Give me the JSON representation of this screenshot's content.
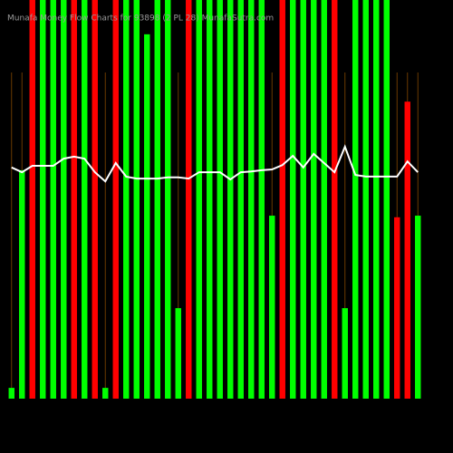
{
  "chart_data": {
    "type": "bar",
    "title": "Munafa Money Flow Charts for 93898 (2 PL 28) MunafaSutra.com",
    "ylim": [
      0,
      100
    ],
    "bar_values": [
      2.7,
      57.3,
      100,
      100,
      100,
      100,
      100,
      100,
      100,
      2.7,
      100,
      100,
      100,
      91.4,
      100,
      100,
      22.7,
      100,
      100,
      100,
      100,
      100,
      100,
      100,
      100,
      45.9,
      100,
      100,
      100,
      100,
      100,
      100,
      22.7,
      100,
      100,
      100,
      100,
      45.5,
      74.5,
      45.9
    ],
    "bar_colors": [
      "#00ff00",
      "#00ff00",
      "#ff0000",
      "#00ff00",
      "#00ff00",
      "#00ff00",
      "#ff0000",
      "#00ff00",
      "#ff0000",
      "#00ff00",
      "#ff0000",
      "#00ff00",
      "#00ff00",
      "#00ff00",
      "#00ff00",
      "#00ff00",
      "#00ff00",
      "#ff0000",
      "#00ff00",
      "#00ff00",
      "#00ff00",
      "#00ff00",
      "#00ff00",
      "#00ff00",
      "#00ff00",
      "#00ff00",
      "#ff0000",
      "#00ff00",
      "#00ff00",
      "#00ff00",
      "#00ff00",
      "#ff0000",
      "#00ff00",
      "#00ff00",
      "#00ff00",
      "#00ff00",
      "#00ff00",
      "#ff0000",
      "#ff0000",
      "#00ff00"
    ],
    "line_values": [
      58,
      56.8,
      58.4,
      58.4,
      58.4,
      60.2,
      60.7,
      60.2,
      56.8,
      54.5,
      59.1,
      55.7,
      55.2,
      55.2,
      55.2,
      55.5,
      55.5,
      55.2,
      56.8,
      56.8,
      56.8,
      55,
      56.8,
      57,
      57.3,
      57.5,
      58.6,
      60.9,
      58,
      61.4,
      59.1,
      56.8,
      63.2,
      56.1,
      55.7,
      55.7,
      55.7,
      55.7,
      59.5,
      56.8
    ],
    "line_color": "#ffffff"
  }
}
